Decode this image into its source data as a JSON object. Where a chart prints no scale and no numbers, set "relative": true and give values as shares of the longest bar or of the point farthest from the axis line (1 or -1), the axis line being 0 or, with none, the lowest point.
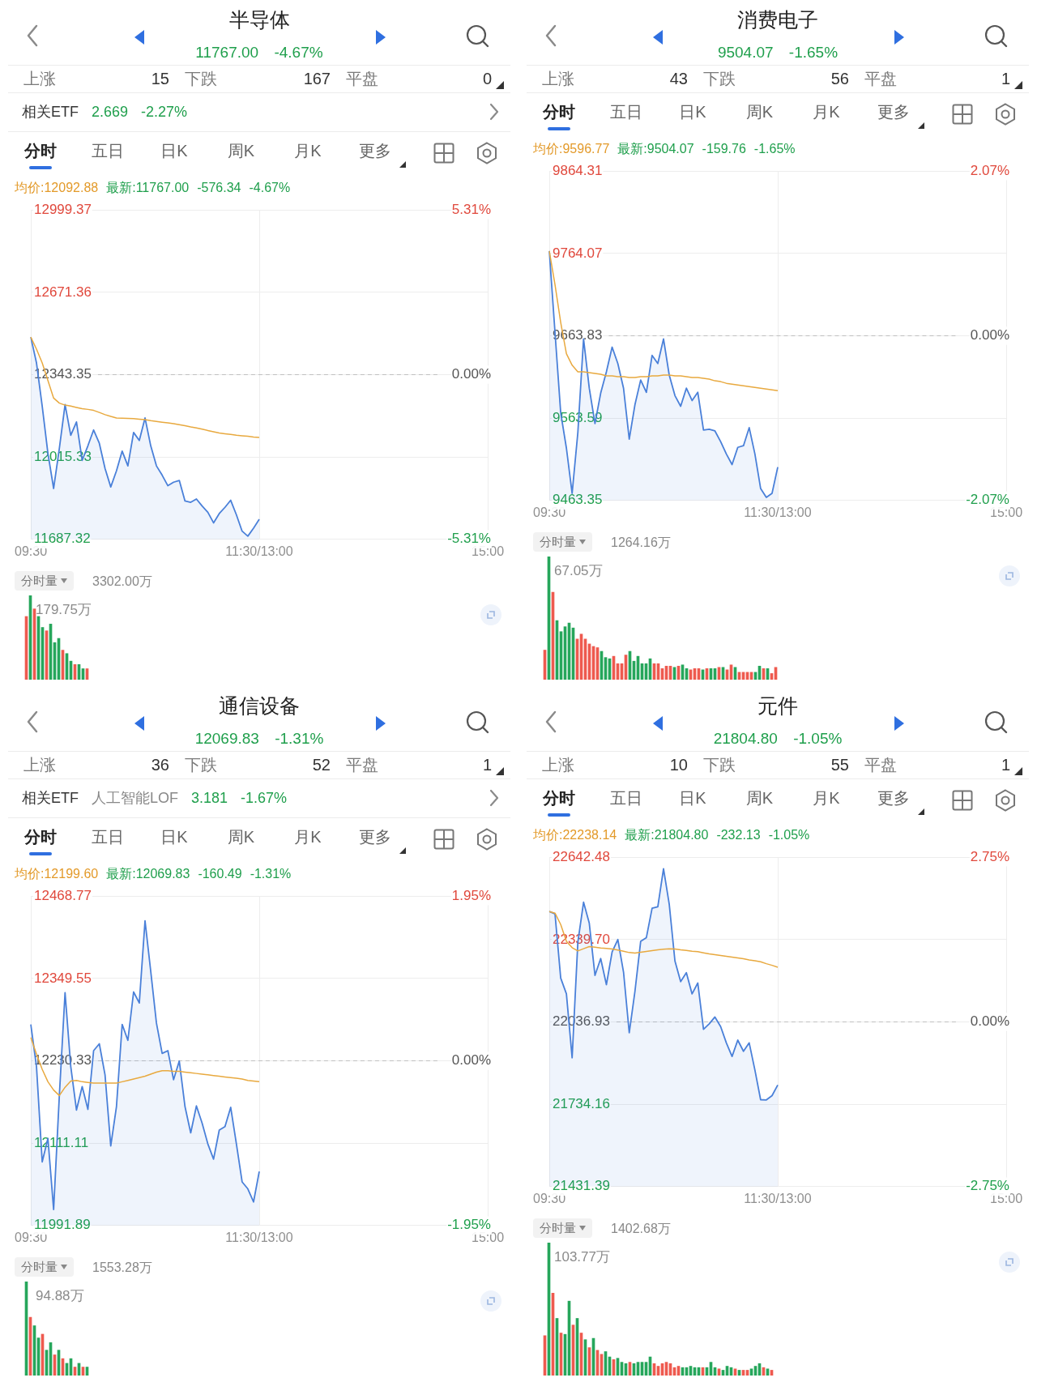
{
  "chart_data": [
    {
      "type": "other",
      "title": "半导体",
      "subtitle": "11767.00 -4.67%",
      "annotations": [
        "上涨",
        "15",
        "下跌",
        "167",
        "平盘",
        "0"
      ]
    },
    {
      "type": "other",
      "annotations": [
        "相关ETF",
        "2.669",
        "-2.27%"
      ]
    },
    {
      "type": "other",
      "annotations": [
        "分时",
        "五日",
        "日K",
        "周K",
        "月K",
        "更多"
      ]
    },
    {
      "type": "line",
      "annotations": [
        "均价:12092.88",
        "最新:11767.00",
        "-576.34",
        "-4.67%"
      ],
      "categories": [
        "09:30",
        null,
        null,
        null,
        null,
        null,
        null,
        null,
        null,
        null,
        null,
        null,
        null,
        null,
        null,
        null,
        null,
        null,
        null,
        null,
        null,
        null,
        null,
        null,
        null,
        null,
        null,
        null,
        null,
        null,
        null,
        null,
        null,
        null,
        null,
        null,
        null,
        null,
        null,
        null,
        "11:30/13:00",
        null,
        null,
        null,
        null,
        null,
        null,
        null,
        null,
        null,
        null,
        null,
        null,
        null,
        null,
        null,
        null,
        null,
        null,
        null,
        null,
        null,
        null,
        null,
        null,
        null,
        null,
        null,
        null,
        null,
        null,
        null,
        null,
        null,
        null,
        null,
        null,
        null,
        null,
        null,
        "15:00"
      ],
      "ylim": [
        11687.32,
        12999.37
      ],
      "yticks": [
        {
          "value": 11687.32,
          "label": "11687.32"
        },
        {
          "value": 12015.33,
          "label": "12015.33"
        },
        {
          "value": 12343.35,
          "label": "12343.35"
        },
        {
          "value": 12671.36,
          "label": "12671.36"
        },
        {
          "value": 12999.37,
          "label": "12999.37"
        }
      ],
      "y2lim": [
        -5.31,
        5.31
      ],
      "y2ticks": [
        {
          "value": -5.31,
          "label": "-5.31%"
        },
        {
          "value": 0,
          "label": "0.00%"
        },
        {
          "value": 5.31,
          "label": "5.31%"
        }
      ],
      "grid": true,
      "ref_lines": [
        {
          "axis": "y",
          "value": 12343.35,
          "color": "#c0c0c0",
          "line_style": "dashed"
        }
      ],
      "series": [
        {
          "type": "area",
          "color": "#4a80d9",
          "values": [
            12493,
            12390,
            12218,
            12030,
            11890,
            12049,
            12224,
            12102,
            12155,
            12002,
            12060,
            12123,
            12070,
            11970,
            11896,
            11960,
            12039,
            11980,
            12113,
            12081,
            12171,
            12060,
            11980,
            11943,
            11901,
            11915,
            11922,
            11840,
            11835,
            11848,
            11820,
            11795,
            11753,
            11790,
            11815,
            11843,
            11785,
            11720,
            11700,
            11732,
            11767,
            null,
            null,
            null,
            null,
            null,
            null,
            null,
            null,
            null,
            null,
            null,
            null,
            null,
            null,
            null,
            null,
            null,
            null,
            null,
            null,
            null,
            null,
            null,
            null,
            null,
            null,
            null,
            null,
            null,
            null,
            null,
            null,
            null,
            null,
            null,
            null,
            null,
            null,
            null,
            null
          ]
        },
        {
          "type": "line",
          "color": "#e8a93f",
          "values": [
            12493,
            12445,
            12390,
            12320,
            12250,
            12230,
            12222,
            12218,
            12213,
            12208,
            12205,
            12201,
            12193,
            12184,
            12177,
            12171,
            12170,
            12169,
            12168,
            12166,
            12164,
            12160,
            12157,
            12154,
            12151,
            12148,
            12144,
            12140,
            12135,
            12131,
            12126,
            12121,
            12116,
            12111,
            12108,
            12105,
            12102,
            12100,
            12098,
            12095,
            12093,
            null,
            null,
            null,
            null,
            null,
            null,
            null,
            null,
            null,
            null,
            null,
            null,
            null,
            null,
            null,
            null,
            null,
            null,
            null,
            null,
            null,
            null,
            null,
            null,
            null,
            null,
            null,
            null,
            null,
            null,
            null,
            null,
            null,
            null,
            null,
            null,
            null,
            null,
            null,
            null
          ]
        }
      ]
    },
    {
      "type": "bar",
      "title": "分时量",
      "subtitle": "3302.00万",
      "annotations": [
        "179.75万"
      ],
      "relative": true,
      "categories": [
        null,
        null,
        null,
        null,
        null,
        null,
        null,
        null,
        null,
        null,
        null,
        null,
        null,
        null,
        null,
        null
      ],
      "values": [
        0.75,
        1,
        0.84,
        0.75,
        0.62,
        0.58,
        0.66,
        0.44,
        0.49,
        0.35,
        0.31,
        0.22,
        0.18,
        0.18,
        0.13,
        0.13
      ],
      "colors": [
        "#ee5a4f",
        "#26a65b",
        "#ee5a4f",
        "#26a65b",
        "#26a65b",
        "#ee5a4f",
        "#26a65b",
        "#26a65b",
        "#26a65b",
        "#ee5a4f",
        "#26a65b",
        "#26a65b",
        "#ee5a4f",
        "#26a65b",
        "#26a65b",
        "#ee5a4f"
      ]
    },
    {
      "type": "other",
      "title": "消费电子",
      "subtitle": "9504.07 -1.65%",
      "annotations": [
        "上涨",
        "43",
        "下跌",
        "56",
        "平盘",
        "1"
      ]
    },
    {
      "type": "other",
      "annotations": [
        "分时",
        "五日",
        "日K",
        "周K",
        "月K",
        "更多"
      ]
    },
    {
      "type": "line",
      "annotations": [
        "均价:9596.77",
        "最新:9504.07",
        "-159.76",
        "-1.65%"
      ],
      "categories": [
        "09:30",
        null,
        null,
        null,
        null,
        null,
        null,
        null,
        null,
        null,
        null,
        null,
        null,
        null,
        null,
        null,
        null,
        null,
        null,
        null,
        null,
        null,
        null,
        null,
        null,
        null,
        null,
        null,
        null,
        null,
        null,
        null,
        null,
        null,
        null,
        null,
        null,
        null,
        null,
        null,
        "11:30/13:00",
        null,
        null,
        null,
        null,
        null,
        null,
        null,
        null,
        null,
        null,
        null,
        null,
        null,
        null,
        null,
        null,
        null,
        null,
        null,
        null,
        null,
        null,
        null,
        null,
        null,
        null,
        null,
        null,
        null,
        null,
        null,
        null,
        null,
        null,
        null,
        null,
        null,
        null,
        null,
        "15:00"
      ],
      "ylim": [
        9463.35,
        9864.31
      ],
      "yticks": [
        {
          "value": 9463.35,
          "label": "9463.35"
        },
        {
          "value": 9563.59,
          "label": "9563.59"
        },
        {
          "value": 9663.83,
          "label": "9663.83"
        },
        {
          "value": 9764.07,
          "label": "9764.07"
        },
        {
          "value": 9864.31,
          "label": "9864.31"
        }
      ],
      "y2lim": [
        -2.07,
        2.07
      ],
      "y2ticks": [
        {
          "value": -2.07,
          "label": "-2.07%"
        },
        {
          "value": 0,
          "label": "0.00%"
        },
        {
          "value": 2.07,
          "label": "2.07%"
        }
      ],
      "grid": true,
      "ref_lines": [
        {
          "axis": "y",
          "value": 9663.83,
          "color": "#c0c0c0",
          "line_style": "dashed"
        }
      ],
      "series": [
        {
          "type": "area",
          "color": "#4a80d9",
          "values": [
            9767,
            9668,
            9570,
            9527,
            9472,
            9546,
            9660,
            9600,
            9557,
            9594,
            9620,
            9650,
            9630,
            9600,
            9538,
            9580,
            9610,
            9595,
            9640,
            9630,
            9660,
            9616,
            9591,
            9578,
            9600,
            9585,
            9595,
            9549,
            9550,
            9548,
            9535,
            9520,
            9507,
            9528,
            9530,
            9552,
            9520,
            9478,
            9467,
            9472,
            9504,
            null,
            null,
            null,
            null,
            null,
            null,
            null,
            null,
            null,
            null,
            null,
            null,
            null,
            null,
            null,
            null,
            null,
            null,
            null,
            null,
            null,
            null,
            null,
            null,
            null,
            null,
            null,
            null,
            null,
            null,
            null,
            null,
            null,
            null,
            null,
            null,
            null,
            null,
            null,
            null
          ]
        },
        {
          "type": "line",
          "color": "#e8a93f",
          "values": [
            9767,
            9726,
            9680,
            9642,
            9628,
            9620,
            9620,
            9619,
            9618,
            9617,
            9615,
            9615,
            9614,
            9614,
            9613,
            9613,
            9614,
            9614,
            9615,
            9615,
            9616,
            9616,
            9615,
            9615,
            9614,
            9613,
            9613,
            9612,
            9611,
            9609,
            9608,
            9606,
            9605,
            9604,
            9603,
            9602,
            9601,
            9600,
            9599,
            9598,
            9597,
            null,
            null,
            null,
            null,
            null,
            null,
            null,
            null,
            null,
            null,
            null,
            null,
            null,
            null,
            null,
            null,
            null,
            null,
            null,
            null,
            null,
            null,
            null,
            null,
            null,
            null,
            null,
            null,
            null,
            null,
            null,
            null,
            null,
            null,
            null,
            null,
            null,
            null,
            null,
            null
          ]
        }
      ]
    },
    {
      "type": "bar",
      "title": "分时量",
      "subtitle": "1264.16万",
      "annotations": [
        "67.05万"
      ],
      "relative": true,
      "categories": [
        null,
        null,
        null,
        null,
        null,
        null,
        null,
        null,
        null,
        null,
        null,
        null,
        null,
        null,
        null,
        null,
        null,
        null,
        null,
        null,
        null,
        null,
        null,
        null,
        null,
        null,
        null,
        null,
        null,
        null,
        null,
        null,
        null,
        null,
        null,
        null,
        null,
        null,
        null,
        null,
        null,
        null,
        null,
        null,
        null,
        null,
        null,
        null,
        null,
        null,
        null,
        null,
        null,
        null,
        null,
        null,
        null,
        null
      ],
      "values": [
        0.24,
        1,
        0.71,
        0.48,
        0.39,
        0.43,
        0.46,
        0.42,
        0.33,
        0.37,
        0.33,
        0.29,
        0.27,
        0.26,
        0.23,
        0.18,
        0.17,
        0.19,
        0.13,
        0.13,
        0.2,
        0.23,
        0.15,
        0.19,
        0.13,
        0.13,
        0.17,
        0.13,
        0.13,
        0.09,
        0.11,
        0.11,
        0.1,
        0.11,
        0.12,
        0.09,
        0.08,
        0.09,
        0.09,
        0.08,
        0.09,
        0.09,
        0.09,
        0.1,
        0.1,
        0.08,
        0.12,
        0.1,
        0.06,
        0.06,
        0.06,
        0.06,
        0.06,
        0.11,
        0.09,
        0.09,
        0.05,
        0.1
      ],
      "colors": [
        "#ee5a4f",
        "#26a65b",
        "#ee5a4f",
        "#26a65b",
        "#26a65b",
        "#26a65b",
        "#26a65b",
        "#26a65b",
        "#ee5a4f",
        "#ee5a4f",
        "#ee5a4f",
        "#ee5a4f",
        "#ee5a4f",
        "#ee5a4f",
        "#26a65b",
        "#26a65b",
        "#26a65b",
        "#ee5a4f",
        "#ee5a4f",
        "#ee5a4f",
        "#ee5a4f",
        "#26a65b",
        "#26a65b",
        "#26a65b",
        "#26a65b",
        "#26a65b",
        "#26a65b",
        "#ee5a4f",
        "#ee5a4f",
        "#ee5a4f",
        "#ee5a4f",
        "#ee5a4f",
        "#26a65b",
        "#ee5a4f",
        "#26a65b",
        "#26a65b",
        "#ee5a4f",
        "#ee5a4f",
        "#ee5a4f",
        "#26a65b",
        "#ee5a4f",
        "#26a65b",
        "#26a65b",
        "#ee5a4f",
        "#26a65b",
        "#ee5a4f",
        "#ee5a4f",
        "#26a65b",
        "#ee5a4f",
        "#ee5a4f",
        "#ee5a4f",
        "#ee5a4f",
        "#26a65b",
        "#26a65b",
        "#ee5a4f",
        "#26a65b",
        "#ee5a4f",
        "#ee5a4f"
      ]
    },
    {
      "type": "other",
      "title": "通信设备",
      "subtitle": "12069.83 -1.31%",
      "annotations": [
        "上涨",
        "36",
        "下跌",
        "52",
        "平盘",
        "1"
      ]
    },
    {
      "type": "other",
      "annotations": [
        "相关ETF",
        "人工智能LOF",
        "3.181",
        "-1.67%"
      ]
    },
    {
      "type": "other",
      "annotations": [
        "分时",
        "五日",
        "日K",
        "周K",
        "月K",
        "更多"
      ]
    },
    {
      "type": "line",
      "annotations": [
        "均价:12199.60",
        "最新:12069.83",
        "-160.49",
        "-1.31%"
      ],
      "categories": [
        "09:30",
        null,
        null,
        null,
        null,
        null,
        null,
        null,
        null,
        null,
        null,
        null,
        null,
        null,
        null,
        null,
        null,
        null,
        null,
        null,
        null,
        null,
        null,
        null,
        null,
        null,
        null,
        null,
        null,
        null,
        null,
        null,
        null,
        null,
        null,
        null,
        null,
        null,
        null,
        null,
        "11:30/13:00",
        null,
        null,
        null,
        null,
        null,
        null,
        null,
        null,
        null,
        null,
        null,
        null,
        null,
        null,
        null,
        null,
        null,
        null,
        null,
        null,
        null,
        null,
        null,
        null,
        null,
        null,
        null,
        null,
        null,
        null,
        null,
        null,
        null,
        null,
        null,
        null,
        null,
        null,
        null,
        "15:00"
      ],
      "ylim": [
        11991.89,
        12468.77
      ],
      "yticks": [
        {
          "value": 11991.89,
          "label": "11991.89"
        },
        {
          "value": 12111.11,
          "label": "12111.11"
        },
        {
          "value": 12230.33,
          "label": "12230.33"
        },
        {
          "value": 12349.55,
          "label": "12349.55"
        },
        {
          "value": 12468.77,
          "label": "12468.77"
        }
      ],
      "y2lim": [
        -1.95,
        1.95
      ],
      "y2ticks": [
        {
          "value": -1.95,
          "label": "-1.95%"
        },
        {
          "value": 0,
          "label": "0.00%"
        },
        {
          "value": 1.95,
          "label": "1.95%"
        }
      ],
      "grid": true,
      "ref_lines": [
        {
          "axis": "y",
          "value": 12230.33,
          "color": "#c0c0c0",
          "line_style": "dashed"
        }
      ],
      "series": [
        {
          "type": "area",
          "color": "#4a80d9",
          "values": [
            12283,
            12222,
            12084,
            12118,
            12015,
            12180,
            12329,
            12222,
            12159,
            12193,
            12160,
            12245,
            12255,
            12210,
            12107,
            12164,
            12283,
            12260,
            12330,
            12314,
            12433,
            12360,
            12285,
            12241,
            12245,
            12203,
            12230,
            12164,
            12126,
            12165,
            12140,
            12110,
            12088,
            12130,
            12135,
            12163,
            12110,
            12055,
            12045,
            12026,
            12070,
            null,
            null,
            null,
            null,
            null,
            null,
            null,
            null,
            null,
            null,
            null,
            null,
            null,
            null,
            null,
            null,
            null,
            null,
            null,
            null,
            null,
            null,
            null,
            null,
            null,
            null,
            null,
            null,
            null,
            null,
            null,
            null,
            null,
            null,
            null,
            null,
            null,
            null,
            null,
            null
          ]
        },
        {
          "type": "line",
          "color": "#e8a93f",
          "values": [
            12264,
            12240,
            12218,
            12200,
            12188,
            12180,
            12192,
            12201,
            12202,
            12200,
            12199,
            12198,
            12198,
            12198,
            12198,
            12198,
            12200,
            12202,
            12204,
            12206,
            12208,
            12211,
            12214,
            12216,
            12216,
            12215,
            12215,
            12214,
            12213,
            12212,
            12211,
            12210,
            12209,
            12208,
            12207,
            12206,
            12205,
            12204,
            12202,
            12201,
            12200,
            null,
            null,
            null,
            null,
            null,
            null,
            null,
            null,
            null,
            null,
            null,
            null,
            null,
            null,
            null,
            null,
            null,
            null,
            null,
            null,
            null,
            null,
            null,
            null,
            null,
            null,
            null,
            null,
            null,
            null,
            null,
            null,
            null,
            null,
            null,
            null,
            null,
            null,
            null,
            null
          ]
        }
      ]
    },
    {
      "type": "bar",
      "title": "分时量",
      "subtitle": "1553.28万",
      "annotations": [
        "94.88万"
      ],
      "relative": true,
      "categories": [
        null,
        null,
        null,
        null,
        null,
        null,
        null,
        null,
        null,
        null,
        null,
        null,
        null,
        null,
        null,
        null
      ],
      "values": [
        1,
        0.62,
        0.53,
        0.4,
        0.44,
        0.27,
        0.35,
        0.22,
        0.27,
        0.18,
        0.13,
        0.18,
        0.09,
        0.13,
        0.09,
        0.09
      ],
      "colors": [
        "#26a65b",
        "#ee5a4f",
        "#26a65b",
        "#26a65b",
        "#ee5a4f",
        "#26a65b",
        "#26a65b",
        "#ee5a4f",
        "#26a65b",
        "#ee5a4f",
        "#26a65b",
        "#26a65b",
        "#ee5a4f",
        "#26a65b",
        "#ee5a4f",
        "#26a65b"
      ]
    },
    {
      "type": "other",
      "title": "元件",
      "subtitle": "21804.80 -1.05%",
      "annotations": [
        "上涨",
        "10",
        "下跌",
        "55",
        "平盘",
        "1"
      ]
    },
    {
      "type": "other",
      "annotations": [
        "分时",
        "五日",
        "日K",
        "周K",
        "月K",
        "更多"
      ]
    },
    {
      "type": "line",
      "annotations": [
        "均价:22238.14",
        "最新:21804.80",
        "-232.13",
        "-1.05%"
      ],
      "categories": [
        "09:30",
        null,
        null,
        null,
        null,
        null,
        null,
        null,
        null,
        null,
        null,
        null,
        null,
        null,
        null,
        null,
        null,
        null,
        null,
        null,
        null,
        null,
        null,
        null,
        null,
        null,
        null,
        null,
        null,
        null,
        null,
        null,
        null,
        null,
        null,
        null,
        null,
        null,
        null,
        null,
        "11:30/13:00",
        null,
        null,
        null,
        null,
        null,
        null,
        null,
        null,
        null,
        null,
        null,
        null,
        null,
        null,
        null,
        null,
        null,
        null,
        null,
        null,
        null,
        null,
        null,
        null,
        null,
        null,
        null,
        null,
        null,
        null,
        null,
        null,
        null,
        null,
        null,
        null,
        null,
        null,
        null,
        "15:00"
      ],
      "ylim": [
        21431.39,
        22642.48
      ],
      "yticks": [
        {
          "value": 21431.39,
          "label": "21431.39"
        },
        {
          "value": 21734.16,
          "label": "21734.16"
        },
        {
          "value": 22036.93,
          "label": "22036.93"
        },
        {
          "value": 22339.7,
          "label": "22339.70"
        },
        {
          "value": 22642.48,
          "label": "22642.48"
        }
      ],
      "y2lim": [
        -2.75,
        2.75
      ],
      "y2ticks": [
        {
          "value": -2.75,
          "label": "-2.75%"
        },
        {
          "value": 0,
          "label": "0.00%"
        },
        {
          "value": 2.75,
          "label": "2.75%"
        }
      ],
      "grid": true,
      "ref_lines": [
        {
          "axis": "y",
          "value": 22036.93,
          "color": "#c0c0c0",
          "line_style": "dashed"
        }
      ],
      "series": [
        {
          "type": "area",
          "color": "#4a80d9",
          "values": [
            22443,
            22434,
            22198,
            22140,
            21905,
            22330,
            22477,
            22400,
            22208,
            22270,
            22174,
            22294,
            22340,
            22220,
            21997,
            22150,
            22333,
            22347,
            22455,
            22460,
            22600,
            22470,
            22261,
            22185,
            22218,
            22140,
            22180,
            22010,
            22030,
            22055,
            22020,
            21960,
            21910,
            21970,
            21929,
            21960,
            21860,
            21751,
            21750,
            21766,
            21805,
            null,
            null,
            null,
            null,
            null,
            null,
            null,
            null,
            null,
            null,
            null,
            null,
            null,
            null,
            null,
            null,
            null,
            null,
            null,
            null,
            null,
            null,
            null,
            null,
            null,
            null,
            null,
            null,
            null,
            null,
            null,
            null,
            null,
            null,
            null,
            null,
            null,
            null,
            null,
            null
          ]
        },
        {
          "type": "line",
          "color": "#e8a93f",
          "values": [
            22443,
            22437,
            22395,
            22333,
            22310,
            22298,
            22306,
            22314,
            22312,
            22309,
            22307,
            22305,
            22301,
            22297,
            22292,
            22290,
            22293,
            22296,
            22299,
            22302,
            22304,
            22306,
            22305,
            22302,
            22300,
            22297,
            22295,
            22291,
            22287,
            22284,
            22281,
            22278,
            22275,
            22272,
            22269,
            22265,
            22262,
            22258,
            22251,
            22245,
            22238,
            null,
            null,
            null,
            null,
            null,
            null,
            null,
            null,
            null,
            null,
            null,
            null,
            null,
            null,
            null,
            null,
            null,
            null,
            null,
            null,
            null,
            null,
            null,
            null,
            null,
            null,
            null,
            null,
            null,
            null,
            null,
            null,
            null,
            null,
            null,
            null,
            null,
            null,
            null,
            null
          ]
        }
      ]
    },
    {
      "type": "bar",
      "title": "分时量",
      "subtitle": "1402.68万",
      "annotations": [
        "103.77万"
      ],
      "relative": true,
      "categories": [
        null,
        null,
        null,
        null,
        null,
        null,
        null,
        null,
        null,
        null,
        null,
        null,
        null,
        null,
        null,
        null,
        null,
        null,
        null,
        null,
        null,
        null,
        null,
        null,
        null,
        null,
        null,
        null,
        null,
        null,
        null,
        null,
        null,
        null,
        null,
        null,
        null,
        null,
        null,
        null,
        null,
        null,
        null,
        null,
        null,
        null,
        null,
        null,
        null,
        null,
        null,
        null,
        null,
        null,
        null,
        null,
        null
      ],
      "values": [
        0.3,
        1,
        0.62,
        0.43,
        0.32,
        0.31,
        0.56,
        0.38,
        0.43,
        0.32,
        0.27,
        0.21,
        0.28,
        0.19,
        0.16,
        0.18,
        0.14,
        0.12,
        0.13,
        0.1,
        0.09,
        0.1,
        0.09,
        0.1,
        0.1,
        0.1,
        0.14,
        0.09,
        0.07,
        0.09,
        0.1,
        0.09,
        0.06,
        0.07,
        0.06,
        0.06,
        0.07,
        0.06,
        0.06,
        0.06,
        0.06,
        0.1,
        0.06,
        0.05,
        0.04,
        0.07,
        0.06,
        0.05,
        0.04,
        0.04,
        0.04,
        0.05,
        0.07,
        0.09,
        0.06,
        0.05,
        0.04
      ],
      "colors": [
        "#ee5a4f",
        "#26a65b",
        "#ee5a4f",
        "#26a65b",
        "#ee5a4f",
        "#26a65b",
        "#26a65b",
        "#ee5a4f",
        "#26a65b",
        "#ee5a4f",
        "#26a65b",
        "#ee5a4f",
        "#26a65b",
        "#ee5a4f",
        "#ee5a4f",
        "#26a65b",
        "#26a65b",
        "#ee5a4f",
        "#26a65b",
        "#26a65b",
        "#26a65b",
        "#ee5a4f",
        "#26a65b",
        "#26a65b",
        "#26a65b",
        "#26a65b",
        "#26a65b",
        "#ee5a4f",
        "#ee5a4f",
        "#ee5a4f",
        "#ee5a4f",
        "#ee5a4f",
        "#ee5a4f",
        "#ee5a4f",
        "#26a65b",
        "#26a65b",
        "#26a65b",
        "#26a65b",
        "#26a65b",
        "#ee5a4f",
        "#26a65b",
        "#26a65b",
        "#26a65b",
        "#ee5a4f",
        "#26a65b",
        "#26a65b",
        "#26a65b",
        "#ee5a4f",
        "#26a65b",
        "#ee5a4f",
        "#ee5a4f",
        "#26a65b",
        "#26a65b",
        "#26a65b",
        "#ee5a4f",
        "#26a65b",
        "#ee5a4f"
      ]
    }
  ]
}
